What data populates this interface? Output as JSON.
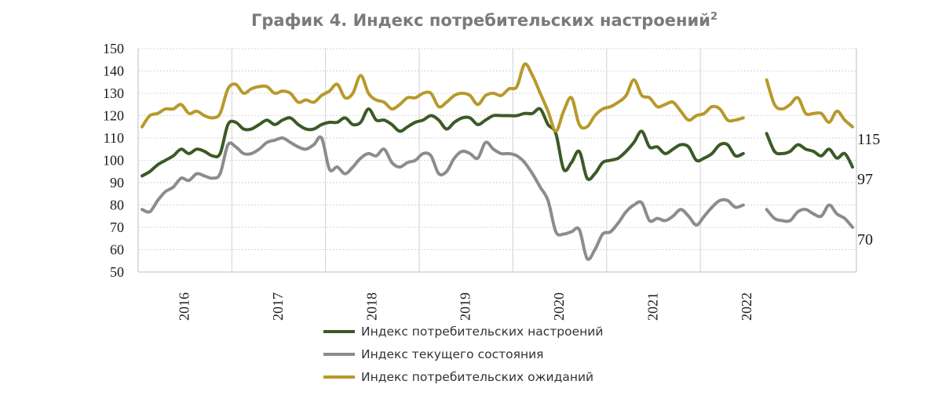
{
  "chart_data": {
    "type": "line",
    "title": "График 4. Индекс потребительских настроений",
    "title_sup": "2",
    "ylim": [
      50,
      150
    ],
    "yticks": [
      50,
      60,
      70,
      80,
      90,
      100,
      110,
      120,
      130,
      140,
      150
    ],
    "x_year_labels": [
      "2016",
      "2017",
      "2018",
      "2019",
      "2020",
      "2021",
      "2022"
    ],
    "grid": "horizontal",
    "legend_position": "bottom",
    "series": [
      {
        "name": "Индекс потребительских настроений",
        "color": "#3b5a26",
        "end_label": "97",
        "values": [
          93,
          95,
          98,
          100,
          102,
          105,
          103,
          105,
          104,
          102,
          103,
          116,
          117,
          114,
          114,
          116,
          118,
          116,
          118,
          119,
          116,
          114,
          114,
          116,
          117,
          117,
          119,
          116,
          117,
          123,
          118,
          118,
          116,
          113,
          115,
          117,
          118,
          120,
          118,
          114,
          117,
          119,
          119,
          116,
          118,
          120,
          120,
          120,
          120,
          121,
          121,
          123,
          116,
          112,
          96,
          99,
          104,
          92,
          94,
          99,
          100,
          101,
          104,
          108,
          113,
          106,
          106,
          103,
          105,
          107,
          106,
          100,
          101,
          103,
          107,
          107,
          102,
          103,
          null,
          null,
          112,
          104,
          103,
          104,
          107,
          105,
          104,
          102,
          105,
          101,
          103,
          97
        ]
      },
      {
        "name": "Индекс текущего состояния",
        "color": "#8c8c8c",
        "end_label": "70",
        "values": [
          78,
          77,
          82,
          86,
          88,
          92,
          91,
          94,
          93,
          92,
          94,
          107,
          106,
          103,
          103,
          105,
          108,
          109,
          110,
          108,
          106,
          105,
          107,
          110,
          96,
          97,
          94,
          97,
          101,
          103,
          102,
          105,
          99,
          97,
          99,
          100,
          103,
          102,
          94,
          95,
          101,
          104,
          103,
          101,
          108,
          105,
          103,
          103,
          102,
          99,
          94,
          88,
          82,
          68,
          67,
          68,
          69,
          56,
          60,
          67,
          68,
          72,
          77,
          80,
          81,
          73,
          74,
          73,
          75,
          78,
          75,
          71,
          75,
          79,
          82,
          82,
          79,
          80,
          null,
          null,
          78,
          74,
          73,
          73,
          77,
          78,
          76,
          75,
          80,
          76,
          74,
          70
        ]
      },
      {
        "name": "Индекс потребительских ожиданий",
        "color": "#b8992a",
        "end_label": "115",
        "values": [
          115,
          120,
          121,
          123,
          123,
          125,
          121,
          122,
          120,
          119,
          121,
          132,
          134,
          130,
          132,
          133,
          133,
          130,
          131,
          130,
          126,
          127,
          126,
          129,
          131,
          134,
          128,
          130,
          138,
          130,
          127,
          126,
          123,
          125,
          128,
          128,
          130,
          130,
          124,
          126,
          129,
          130,
          129,
          125,
          129,
          130,
          129,
          132,
          133,
          143,
          138,
          130,
          122,
          113,
          122,
          128,
          116,
          115,
          120,
          123,
          124,
          126,
          129,
          136,
          129,
          128,
          124,
          125,
          126,
          122,
          118,
          120,
          121,
          124,
          123,
          118,
          118,
          119,
          null,
          null,
          136,
          125,
          123,
          125,
          128,
          121,
          121,
          121,
          117,
          122,
          118,
          115
        ]
      }
    ]
  }
}
